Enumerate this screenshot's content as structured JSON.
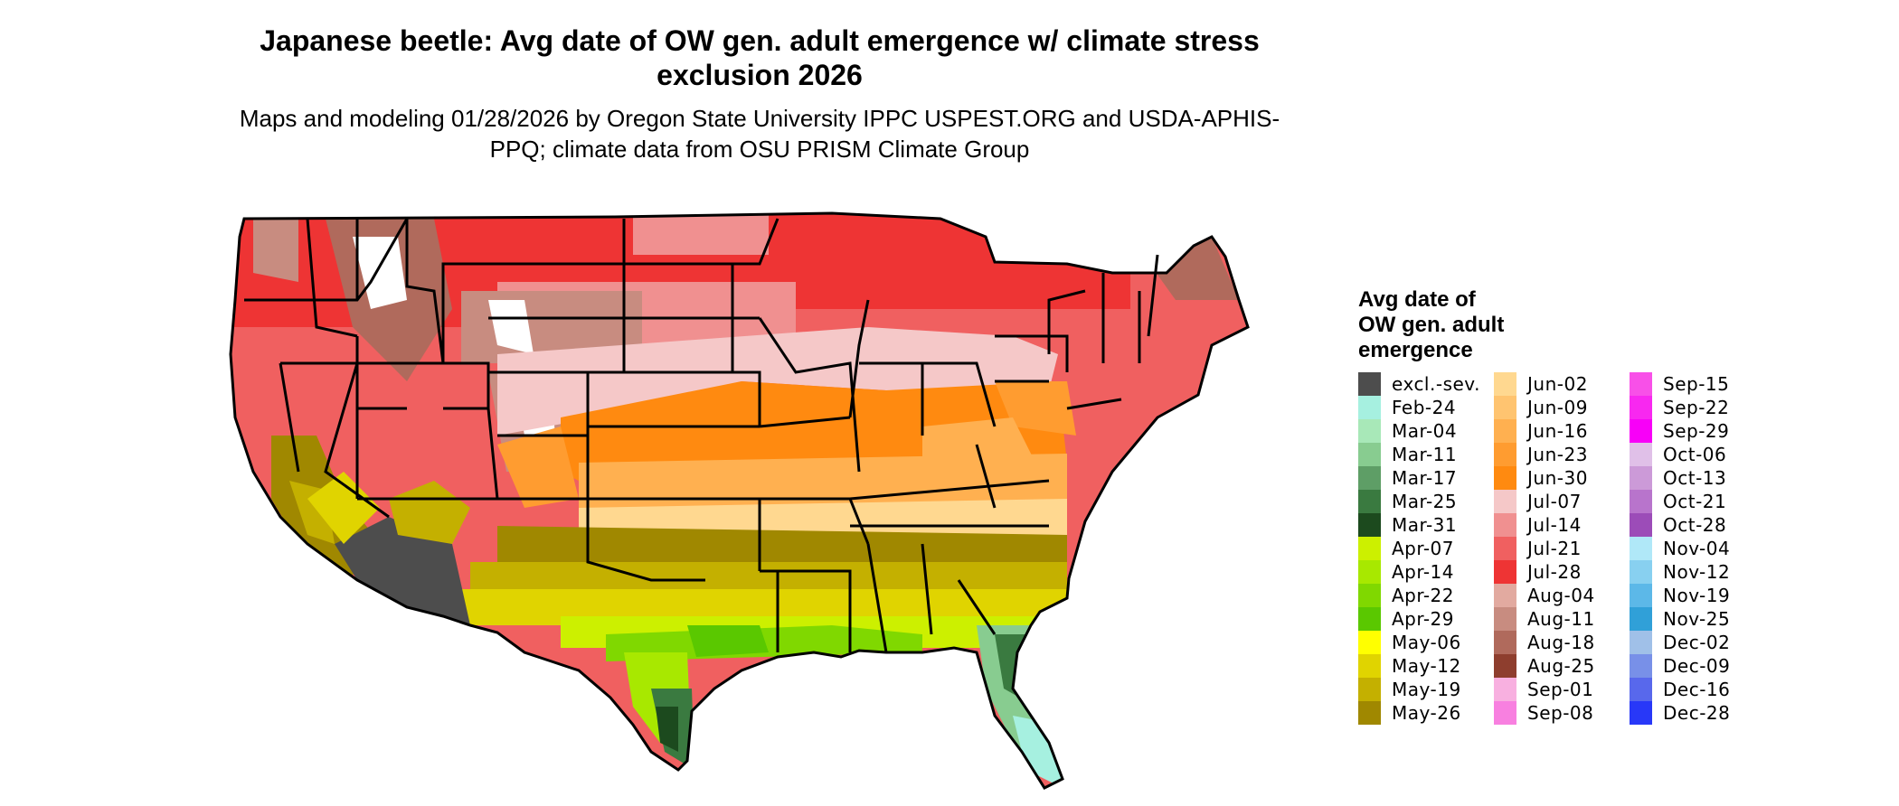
{
  "title": "Japanese beetle: Avg date of OW gen. adult emergence w/ climate stress exclusion 2026",
  "subtitle": "Maps and modeling 01/28/2026 by Oregon State University IPPC USPEST.ORG and USDA-APHIS-PPQ; climate data from OSU PRISM Climate Group",
  "legend": {
    "title": "Avg date of\nOW gen. adult\nemergence",
    "items": [
      {
        "label": "excl.-sev.",
        "color": "#4d4d4d"
      },
      {
        "label": "Feb-24",
        "color": "#a6f0e0"
      },
      {
        "label": "Mar-04",
        "color": "#a8e8b8"
      },
      {
        "label": "Mar-11",
        "color": "#88cc90"
      },
      {
        "label": "Mar-17",
        "color": "#5e9e66"
      },
      {
        "label": "Mar-25",
        "color": "#3a7a40"
      },
      {
        "label": "Mar-31",
        "color": "#1c4a1e"
      },
      {
        "label": "Apr-07",
        "color": "#ccf000"
      },
      {
        "label": "Apr-14",
        "color": "#a8e800"
      },
      {
        "label": "Apr-22",
        "color": "#80d800"
      },
      {
        "label": "Apr-29",
        "color": "#5ac800"
      },
      {
        "label": "May-06",
        "color": "#ffff00"
      },
      {
        "label": "May-12",
        "color": "#e0d400"
      },
      {
        "label": "May-19",
        "color": "#c4b000"
      },
      {
        "label": "May-26",
        "color": "#a08800"
      },
      {
        "label": "Jun-02",
        "color": "#ffd890"
      },
      {
        "label": "Jun-09",
        "color": "#ffc470"
      },
      {
        "label": "Jun-16",
        "color": "#ffb050"
      },
      {
        "label": "Jun-23",
        "color": "#ff9c30"
      },
      {
        "label": "Jun-30",
        "color": "#ff8a10"
      },
      {
        "label": "Jul-07",
        "color": "#f5c8c8"
      },
      {
        "label": "Jul-14",
        "color": "#f09090"
      },
      {
        "label": "Jul-21",
        "color": "#f06060"
      },
      {
        "label": "Jul-28",
        "color": "#ee3434"
      },
      {
        "label": "Aug-04",
        "color": "#e2aaa0"
      },
      {
        "label": "Aug-11",
        "color": "#c88c80"
      },
      {
        "label": "Aug-18",
        "color": "#b06a5c"
      },
      {
        "label": "Aug-25",
        "color": "#8e3e2e"
      },
      {
        "label": "Sep-01",
        "color": "#f8b0e0"
      },
      {
        "label": "Sep-08",
        "color": "#f880e0"
      },
      {
        "label": "Sep-15",
        "color": "#f850e8"
      },
      {
        "label": "Sep-22",
        "color": "#f828f0"
      },
      {
        "label": "Sep-29",
        "color": "#f800f8"
      },
      {
        "label": "Oct-06",
        "color": "#e0c0e8"
      },
      {
        "label": "Oct-13",
        "color": "#cc9ad8"
      },
      {
        "label": "Oct-21",
        "color": "#b874cc"
      },
      {
        "label": "Oct-28",
        "color": "#9c4cb8"
      },
      {
        "label": "Nov-04",
        "color": "#b0e8f8"
      },
      {
        "label": "Nov-12",
        "color": "#88d0f0"
      },
      {
        "label": "Nov-19",
        "color": "#5cb8e8"
      },
      {
        "label": "Nov-25",
        "color": "#30a0d8"
      },
      {
        "label": "Dec-02",
        "color": "#a0c0e8"
      },
      {
        "label": "Dec-09",
        "color": "#7890e8"
      },
      {
        "label": "Dec-16",
        "color": "#5868ec"
      },
      {
        "label": "Dec-28",
        "color": "#2838f8"
      }
    ]
  }
}
